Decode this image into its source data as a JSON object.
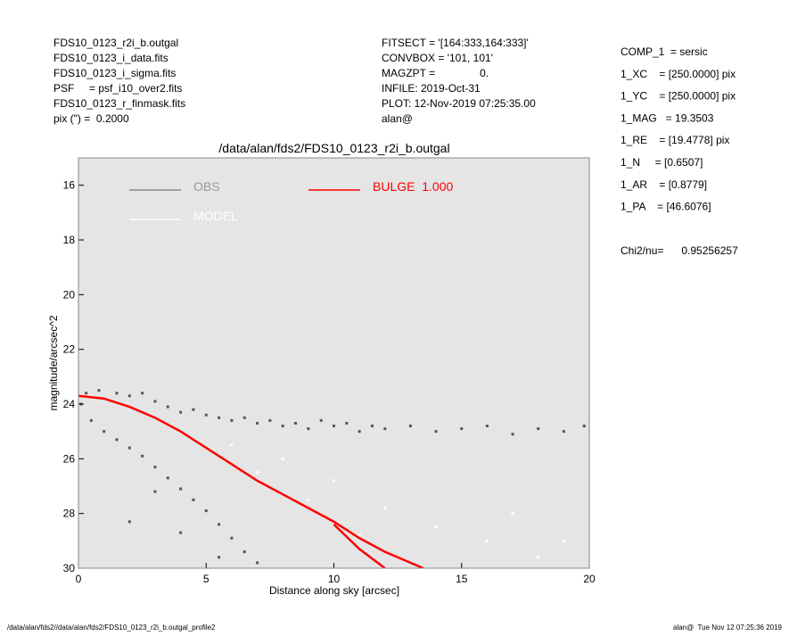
{
  "info_left": [
    "FDS10_0123_r2i_b.outgal",
    "FDS10_0123_i_data.fits",
    "FDS10_0123_i_sigma.fits",
    "PSF     = psf_i10_over2.fits",
    "FDS10_0123_r_finmask.fits",
    "pix (\") =  0.2000"
  ],
  "info_middle": [
    "FITSECT = '[164:333,164:333]'",
    "CONVBOX = '101, 101'",
    "MAGZPT =               0.",
    "INFILE: 2019-Oct-31",
    "PLOT: 12-Nov-2019 07:25:35.00",
    "alan@"
  ],
  "info_right": [
    "COMP_1  = sersic",
    "1_XC    = [250.0000] pix",
    "1_YC    = [250.0000] pix",
    "1_MAG   = 19.3503",
    "1_RE    = [19.4778] pix",
    "1_N     = [0.6507]",
    "1_AR    = [0.8779]",
    "1_PA    = [46.6076]"
  ],
  "chi2": "Chi2/nu=      0.95256257",
  "footer_left": "/data/alan/fds2//data/alan/fds2/FDS10_0123_r2i_b.outgal_profile2",
  "footer_right": "alan@  Tue Nov 12 07:25:36 2019",
  "chart_data": {
    "type": "scatter",
    "title": "/data/alan/fds2/FDS10_0123_r2i_b.outgal",
    "xlabel": "Distance along sky [arcsec]",
    "ylabel": "magnitude/arcsec^2",
    "xlim": [
      0,
      20
    ],
    "xticks": [
      0,
      5,
      10,
      15,
      20
    ],
    "ylim": [
      30,
      15
    ],
    "yticks": [
      16,
      18,
      20,
      22,
      24,
      26,
      28,
      30
    ],
    "background": "#e5e5e5",
    "series": [
      {
        "name": "OBS",
        "color": "#555555",
        "style": "points",
        "x": [
          0.3,
          0.8,
          1.5,
          2.0,
          2.5,
          3.0,
          3.5,
          4.0,
          4.5,
          5.0,
          5.5,
          6.0,
          6.5,
          7.0,
          7.5,
          8.0,
          8.5,
          9.0,
          9.5,
          10.0,
          10.5,
          11.0,
          11.5,
          12.0,
          13.0,
          14.0,
          15.0,
          16.0,
          17.0,
          18.0,
          19.0,
          19.8,
          0.1,
          0.5,
          1.0,
          1.5,
          2.0,
          2.5,
          3.0,
          3.5,
          4.0,
          4.5,
          5.0,
          5.5,
          6.0,
          6.5,
          7.0,
          3.0,
          2.0,
          4.0,
          5.5
        ],
        "values": [
          23.6,
          23.5,
          23.6,
          23.7,
          23.6,
          23.9,
          24.1,
          24.3,
          24.2,
          24.4,
          24.5,
          24.6,
          24.5,
          24.7,
          24.6,
          24.8,
          24.7,
          24.9,
          24.6,
          24.8,
          24.7,
          25.0,
          24.8,
          24.9,
          24.8,
          25.0,
          24.9,
          24.8,
          25.1,
          24.9,
          25.0,
          24.8,
          24.0,
          24.6,
          25.0,
          25.3,
          25.6,
          25.9,
          26.3,
          26.7,
          27.1,
          27.5,
          27.9,
          28.4,
          28.9,
          29.4,
          29.8,
          27.2,
          28.3,
          28.7,
          29.6
        ]
      },
      {
        "name": "MODEL",
        "color": "#ffffff",
        "style": "points",
        "x": [
          4,
          6,
          8,
          10,
          12,
          14,
          16,
          18,
          9,
          11,
          13,
          7,
          19,
          17
        ],
        "values": [
          25.0,
          25.5,
          26.0,
          26.8,
          27.8,
          28.5,
          29.0,
          29.6,
          27.5,
          28.8,
          29.8,
          26.5,
          29.0,
          28.0
        ]
      },
      {
        "name": "BULGE  1.000",
        "color": "#ff0000",
        "style": "line",
        "x": [
          0,
          1,
          2,
          3,
          4,
          5,
          6,
          7,
          8,
          9,
          10,
          11,
          12,
          13.5,
          null,
          10,
          11,
          12
        ],
        "values": [
          23.7,
          23.8,
          24.1,
          24.5,
          25.0,
          25.6,
          26.2,
          26.8,
          27.3,
          27.8,
          28.3,
          28.9,
          29.4,
          30,
          null,
          28.4,
          29.3,
          30
        ]
      }
    ]
  }
}
